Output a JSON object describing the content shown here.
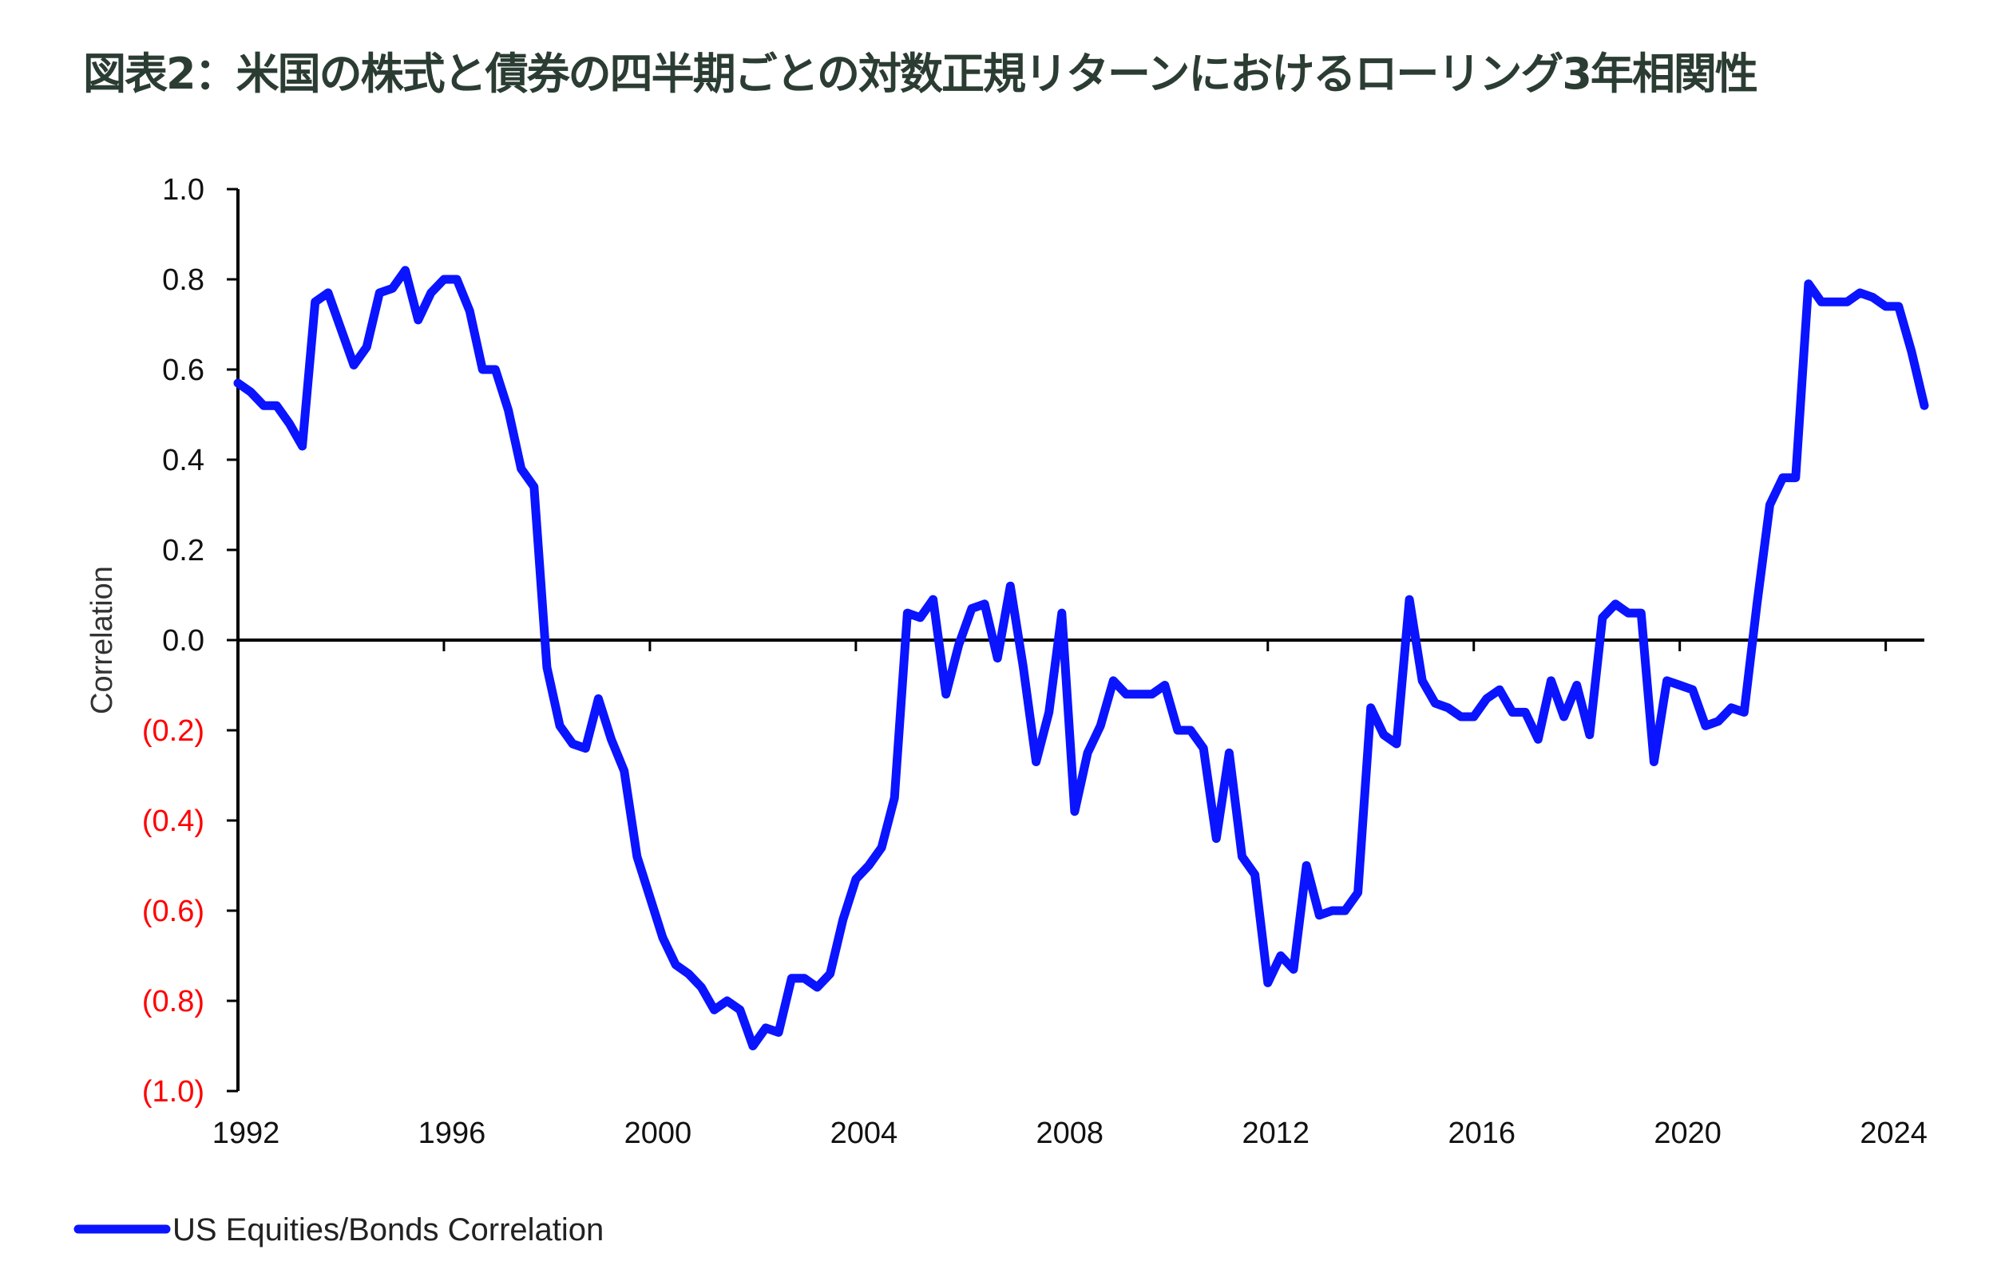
{
  "title": "図表2：米国の株式と債券の四半期ごとの対数正規リターンにおけるローリング3年相関性",
  "colors": {
    "line": "#0a14ff",
    "negative_label": "#ff0000",
    "title": "#2b3d33",
    "axis": "#000000"
  },
  "chart_data": {
    "type": "line",
    "title": "図表2：米国の株式と債券の四半期ごとの対数正規リターンにおけるローリング3年相関性",
    "xlabel": "",
    "ylabel": "Correlation",
    "xlim": [
      1992,
      2024.75
    ],
    "ylim": [
      -1.0,
      1.0
    ],
    "grid": false,
    "legend_position": "bottom-left",
    "x_ticks": [
      "1992",
      "1996",
      "2000",
      "2004",
      "2008",
      "2012",
      "2016",
      "2020",
      "2024"
    ],
    "y_ticks": [
      {
        "value": 1.0,
        "label": "1.0"
      },
      {
        "value": 0.8,
        "label": "0.8"
      },
      {
        "value": 0.6,
        "label": "0.6"
      },
      {
        "value": 0.4,
        "label": "0.4"
      },
      {
        "value": 0.2,
        "label": "0.2"
      },
      {
        "value": 0.0,
        "label": "0.0"
      },
      {
        "value": -0.2,
        "label": "(0.2)"
      },
      {
        "value": -0.4,
        "label": "(0.4)"
      },
      {
        "value": -0.6,
        "label": "(0.6)"
      },
      {
        "value": -0.8,
        "label": "(0.8)"
      },
      {
        "value": -1.0,
        "label": "(1.0)"
      }
    ],
    "series": [
      {
        "name": "US Equities/Bonds Correlation",
        "x": [
          1992,
          1992.25,
          1992.5,
          1992.75,
          1993,
          1993.25,
          1993.5,
          1993.75,
          1994,
          1994.25,
          1994.5,
          1994.75,
          1995,
          1995.25,
          1995.5,
          1995.75,
          1996,
          1996.25,
          1996.5,
          1996.75,
          1997,
          1997.25,
          1997.5,
          1997.75,
          1998,
          1998.25,
          1998.5,
          1998.75,
          1999,
          1999.25,
          1999.5,
          1999.75,
          2000,
          2000.25,
          2000.5,
          2000.75,
          2001,
          2001.25,
          2001.5,
          2001.75,
          2002,
          2002.25,
          2002.5,
          2002.75,
          2003,
          2003.25,
          2003.5,
          2003.75,
          2004,
          2004.25,
          2004.5,
          2004.75,
          2005,
          2005.25,
          2005.5,
          2005.75,
          2006,
          2006.25,
          2006.5,
          2006.75,
          2007,
          2007.25,
          2007.5,
          2007.75,
          2008,
          2008.25,
          2008.5,
          2008.75,
          2009,
          2009.25,
          2009.5,
          2009.75,
          2010,
          2010.25,
          2010.5,
          2010.75,
          2011,
          2011.25,
          2011.5,
          2011.75,
          2012,
          2012.25,
          2012.5,
          2012.75,
          2013,
          2013.25,
          2013.5,
          2013.75,
          2014,
          2014.25,
          2014.5,
          2014.75,
          2015,
          2015.25,
          2015.5,
          2015.75,
          2016,
          2016.25,
          2016.5,
          2016.75,
          2017,
          2017.25,
          2017.5,
          2017.75,
          2018,
          2018.25,
          2018.5,
          2018.75,
          2019,
          2019.25,
          2019.5,
          2019.75,
          2020,
          2020.25,
          2020.5,
          2020.75,
          2021,
          2021.25,
          2021.5,
          2021.75,
          2022,
          2022.25,
          2022.5,
          2022.75,
          2023,
          2023.25,
          2023.5,
          2023.75,
          2024,
          2024.25,
          2024.5,
          2024.75
        ],
        "values": [
          0.57,
          0.55,
          0.52,
          0.52,
          0.48,
          0.43,
          0.75,
          0.77,
          0.69,
          0.61,
          0.65,
          0.77,
          0.78,
          0.82,
          0.71,
          0.77,
          0.8,
          0.8,
          0.73,
          0.6,
          0.6,
          0.51,
          0.38,
          0.34,
          -0.06,
          -0.19,
          -0.23,
          -0.24,
          -0.13,
          -0.22,
          -0.29,
          -0.48,
          -0.57,
          -0.66,
          -0.72,
          -0.74,
          -0.77,
          -0.82,
          -0.8,
          -0.82,
          -0.9,
          -0.86,
          -0.87,
          -0.75,
          -0.75,
          -0.77,
          -0.74,
          -0.62,
          -0.53,
          -0.5,
          -0.46,
          -0.35,
          0.06,
          0.05,
          0.09,
          -0.12,
          -0.01,
          0.07,
          0.08,
          -0.04,
          0.12,
          -0.06,
          -0.27,
          -0.16,
          0.06,
          -0.38,
          -0.25,
          -0.19,
          -0.09,
          -0.12,
          -0.12,
          -0.12,
          -0.1,
          -0.2,
          -0.2,
          -0.24,
          -0.44,
          -0.25,
          -0.48,
          -0.52,
          -0.76,
          -0.7,
          -0.73,
          -0.5,
          -0.61,
          -0.6,
          -0.6,
          -0.56,
          -0.15,
          -0.21,
          -0.23,
          0.09,
          -0.09,
          -0.14,
          -0.15,
          -0.17,
          -0.17,
          -0.13,
          -0.11,
          -0.16,
          -0.16,
          -0.22,
          -0.09,
          -0.17,
          -0.1,
          -0.21,
          0.05,
          0.08,
          0.06,
          0.06,
          -0.27,
          -0.09,
          -0.1,
          -0.11,
          -0.19,
          -0.18,
          -0.15,
          -0.16,
          0.08,
          0.3,
          0.36,
          0.36,
          0.79,
          0.75,
          0.75,
          0.75,
          0.77,
          0.76,
          0.74,
          0.74,
          0.64,
          0.52
        ]
      }
    ]
  }
}
